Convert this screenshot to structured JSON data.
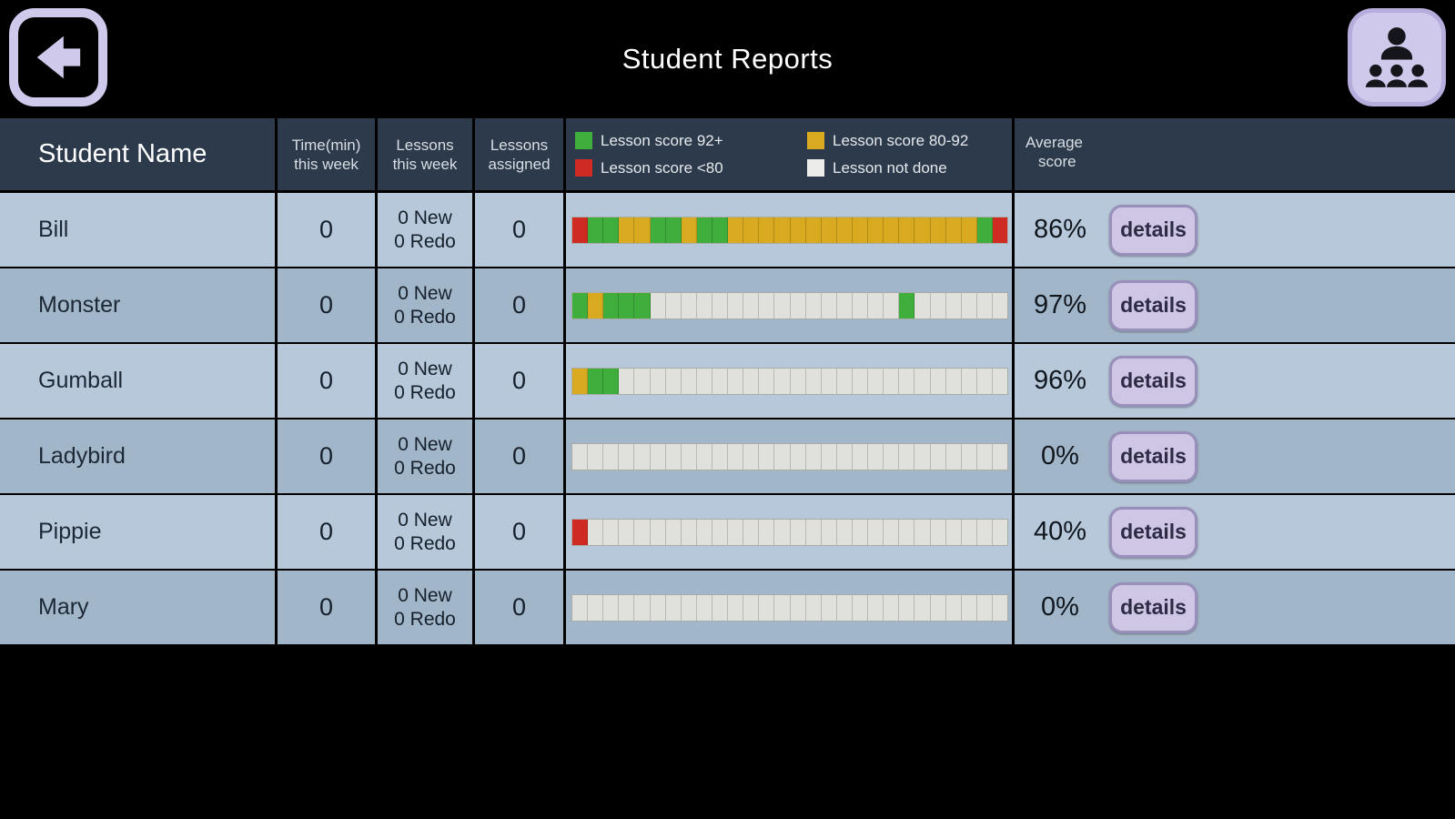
{
  "topbar": {
    "title": "Student Reports"
  },
  "table": {
    "headers": {
      "student": "Student Name",
      "time_l1": "Time(min)",
      "time_l2": "this week",
      "lessons_l1": "Lessons",
      "lessons_l2": "this week",
      "assigned_l1": "Lessons",
      "assigned_l2": "assigned",
      "avg_l1": "Average",
      "avg_l2": "score"
    },
    "legend": {
      "items": [
        {
          "label": "Lesson score 92+",
          "color": "#3fae3c"
        },
        {
          "label": "Lesson score 80-92",
          "color": "#d9a91f"
        },
        {
          "label": "Lesson score <80",
          "color": "#cf2b23"
        },
        {
          "label": "Lesson not done",
          "color": "#ececea"
        }
      ]
    },
    "segment_colors": {
      "green": "#3fae3c",
      "gold": "#d9a91f",
      "red": "#cf2b23",
      "gray": "#e0e0dc"
    },
    "details_label": "details",
    "rows": [
      {
        "name": "Bill",
        "time": "0",
        "new": "0 New",
        "redo": "0 Redo",
        "assigned": "0",
        "avg": "86%",
        "segments": [
          "red",
          "green",
          "green",
          "gold",
          "gold",
          "green",
          "green",
          "gold",
          "green",
          "green",
          "gold",
          "gold",
          "gold",
          "gold",
          "gold",
          "gold",
          "gold",
          "gold",
          "gold",
          "gold",
          "gold",
          "gold",
          "gold",
          "gold",
          "gold",
          "gold",
          "green",
          "red"
        ]
      },
      {
        "name": "Monster",
        "time": "0",
        "new": "0 New",
        "redo": "0 Redo",
        "assigned": "0",
        "avg": "97%",
        "segments": [
          "green",
          "gold",
          "green",
          "green",
          "green",
          "gray",
          "gray",
          "gray",
          "gray",
          "gray",
          "gray",
          "gray",
          "gray",
          "gray",
          "gray",
          "gray",
          "gray",
          "gray",
          "gray",
          "gray",
          "gray",
          "green",
          "gray",
          "gray",
          "gray",
          "gray",
          "gray",
          "gray"
        ]
      },
      {
        "name": "Gumball",
        "time": "0",
        "new": "0 New",
        "redo": "0 Redo",
        "assigned": "0",
        "avg": "96%",
        "segments": [
          "gold",
          "green",
          "green",
          "gray",
          "gray",
          "gray",
          "gray",
          "gray",
          "gray",
          "gray",
          "gray",
          "gray",
          "gray",
          "gray",
          "gray",
          "gray",
          "gray",
          "gray",
          "gray",
          "gray",
          "gray",
          "gray",
          "gray",
          "gray",
          "gray",
          "gray",
          "gray",
          "gray"
        ]
      },
      {
        "name": "Ladybird",
        "time": "0",
        "new": "0 New",
        "redo": "0 Redo",
        "assigned": "0",
        "avg": "0%",
        "segments": [
          "gray",
          "gray",
          "gray",
          "gray",
          "gray",
          "gray",
          "gray",
          "gray",
          "gray",
          "gray",
          "gray",
          "gray",
          "gray",
          "gray",
          "gray",
          "gray",
          "gray",
          "gray",
          "gray",
          "gray",
          "gray",
          "gray",
          "gray",
          "gray",
          "gray",
          "gray",
          "gray",
          "gray"
        ]
      },
      {
        "name": "Pippie",
        "time": "0",
        "new": "0 New",
        "redo": "0 Redo",
        "assigned": "0",
        "avg": "40%",
        "segments": [
          "red",
          "gray",
          "gray",
          "gray",
          "gray",
          "gray",
          "gray",
          "gray",
          "gray",
          "gray",
          "gray",
          "gray",
          "gray",
          "gray",
          "gray",
          "gray",
          "gray",
          "gray",
          "gray",
          "gray",
          "gray",
          "gray",
          "gray",
          "gray",
          "gray",
          "gray",
          "gray",
          "gray"
        ]
      },
      {
        "name": "Mary",
        "time": "0",
        "new": "0 New",
        "redo": "0 Redo",
        "assigned": "0",
        "avg": "0%",
        "segments": [
          "gray",
          "gray",
          "gray",
          "gray",
          "gray",
          "gray",
          "gray",
          "gray",
          "gray",
          "gray",
          "gray",
          "gray",
          "gray",
          "gray",
          "gray",
          "gray",
          "gray",
          "gray",
          "gray",
          "gray",
          "gray",
          "gray",
          "gray",
          "gray",
          "gray",
          "gray",
          "gray",
          "gray"
        ]
      }
    ]
  }
}
